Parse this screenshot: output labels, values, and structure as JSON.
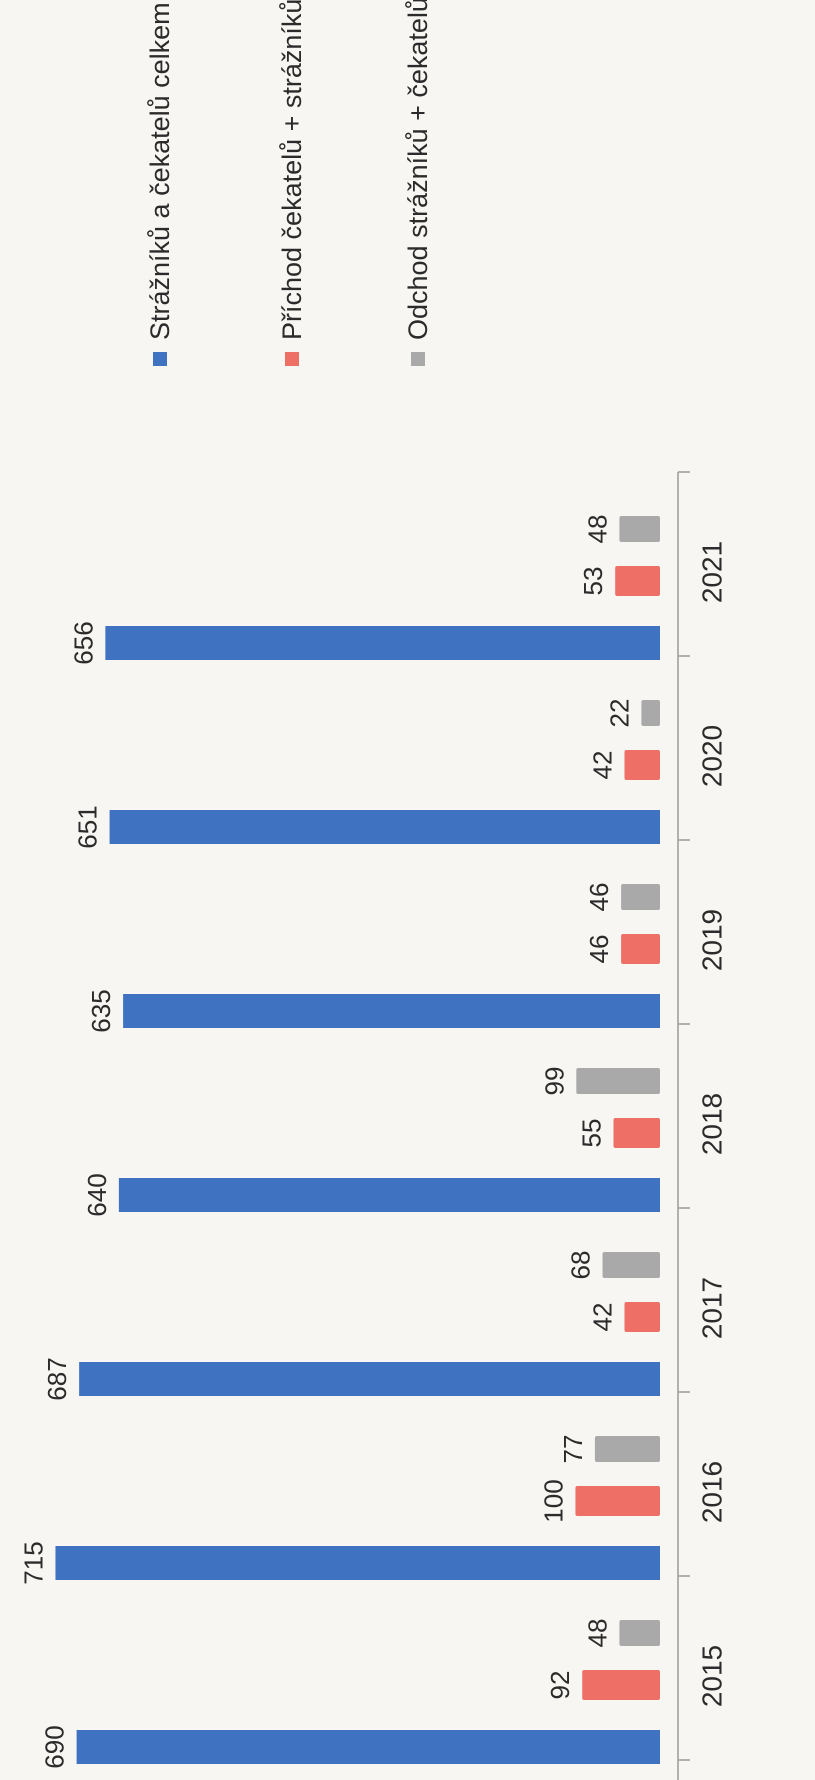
{
  "chart_data": {
    "type": "bar",
    "orientation": "rotated-90-ccw",
    "categories": [
      "2015",
      "2016",
      "2017",
      "2018",
      "2019",
      "2020",
      "2021"
    ],
    "series": [
      {
        "name": "Strážníků a čekatelů celkem",
        "color": "#3f72c0",
        "values": [
          690,
          715,
          687,
          640,
          635,
          651,
          656
        ]
      },
      {
        "name": "Příchod čekatelů + strážníků",
        "color": "#ee6f66",
        "values": [
          92,
          100,
          42,
          55,
          46,
          42,
          53
        ]
      },
      {
        "name": "Odchod strážníků + čekatelů",
        "color": "#a9a9a9",
        "values": [
          48,
          77,
          68,
          99,
          46,
          22,
          48
        ]
      }
    ],
    "legend_position": "top-right",
    "grid": false,
    "ylim": [
      0,
      720
    ]
  }
}
